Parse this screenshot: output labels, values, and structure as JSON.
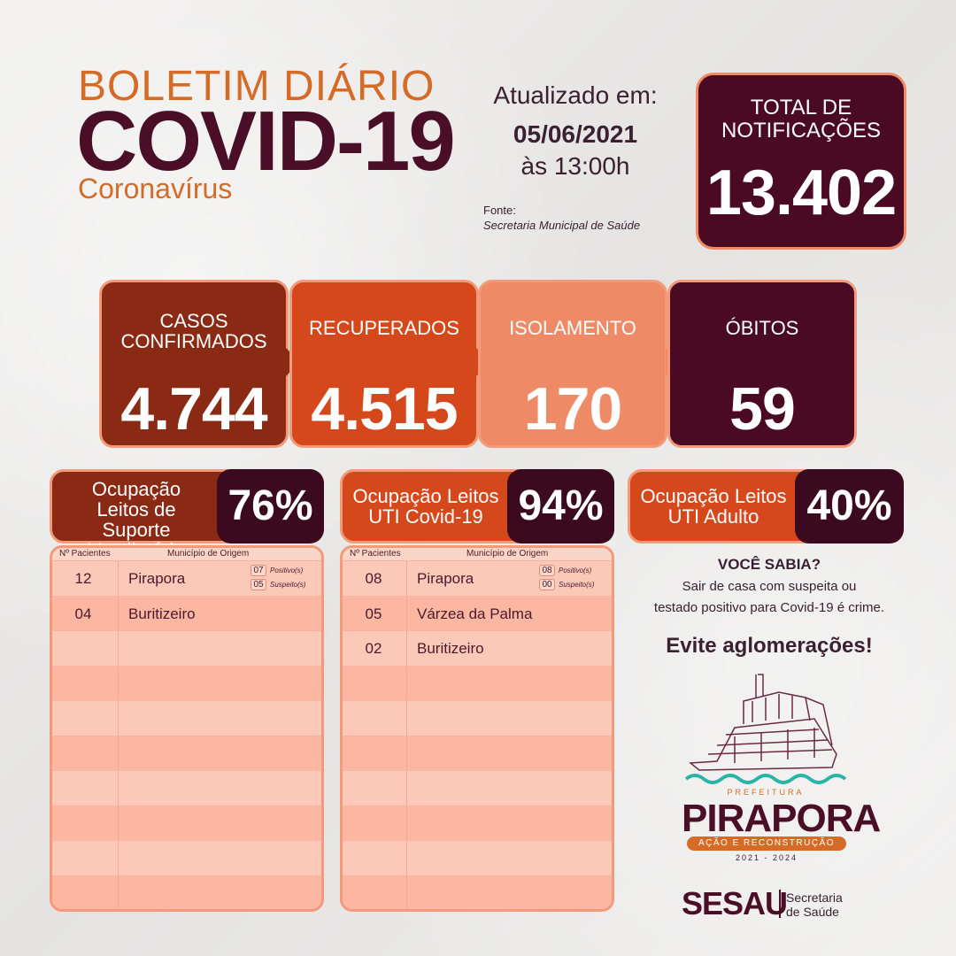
{
  "header": {
    "line1": "BOLETIM DIÁRIO",
    "line2": "COVID-19",
    "line3": "Coronavírus"
  },
  "update": {
    "label": "Atualizado em:",
    "date": "05/06/2021",
    "time": "às 13:00h",
    "source_label": "Fonte:",
    "source_value": "Secretaria Municipal de Saúde"
  },
  "total": {
    "label_l1": "TOTAL DE",
    "label_l2": "NOTIFICAÇÕES",
    "value": "13.402"
  },
  "cards": [
    {
      "label_l1": "CASOS",
      "label_l2": "CONFIRMADOS",
      "value": "4.744",
      "color": "#8a2a15"
    },
    {
      "label_l1": "RECUPERADOS",
      "label_l2": "",
      "value": "4.515",
      "color": "#d4481b"
    },
    {
      "label_l1": "ISOLAMENTO",
      "label_l2": "",
      "value": "170",
      "color": "#ef8a66"
    },
    {
      "label_l1": "ÓBITOS",
      "label_l2": "",
      "value": "59",
      "color": "#4a0a24"
    }
  ],
  "occupancy": [
    {
      "label_l1": "Ocupação",
      "label_l2": "Leitos de Suporte",
      "label_l3": "Ventilatório",
      "pct": "76%",
      "color": "#8a2a15"
    },
    {
      "label_l1": "Ocupação Leitos",
      "label_l2": "UTI Covid-19",
      "label_l3": "",
      "pct": "94%",
      "color": "#d4481b"
    },
    {
      "label_l1": "Ocupação Leitos",
      "label_l2": "UTI Adulto",
      "label_l3": "",
      "pct": "40%",
      "color": "#d4481b"
    }
  ],
  "table_headers": {
    "patients": "Nº Pacientes",
    "origin": "Município de Origem"
  },
  "table1": {
    "rows": [
      {
        "n": "12",
        "city": "Pirapora",
        "pos": "07",
        "pos_label": "Positivo(s)",
        "sus": "05",
        "sus_label": "Suspeito(s)"
      },
      {
        "n": "04",
        "city": "Buritizeiro"
      }
    ]
  },
  "table2": {
    "rows": [
      {
        "n": "08",
        "city": "Pirapora",
        "pos": "08",
        "pos_label": "Positivo(s)",
        "sus": "00",
        "sus_label": "Suspeito(s)"
      },
      {
        "n": "05",
        "city": "Várzea da Palma"
      },
      {
        "n": "02",
        "city": "Buritizeiro"
      }
    ]
  },
  "info": {
    "title": "VOCÊ SABIA?",
    "line1": "Sair de casa com suspeita ou",
    "line2": "testado positivo para Covid-19 é crime.",
    "call": "Evite aglomerações!"
  },
  "logo": {
    "prefeitura": "PREFEITURA",
    "city": "PIRAPORA",
    "slogan": "AÇÃO E RECONSTRUÇÃO",
    "years": "2021 - 2024",
    "sesau": "SESAU",
    "sec_l1": "Secretaria",
    "sec_l2": "de Saúde"
  }
}
